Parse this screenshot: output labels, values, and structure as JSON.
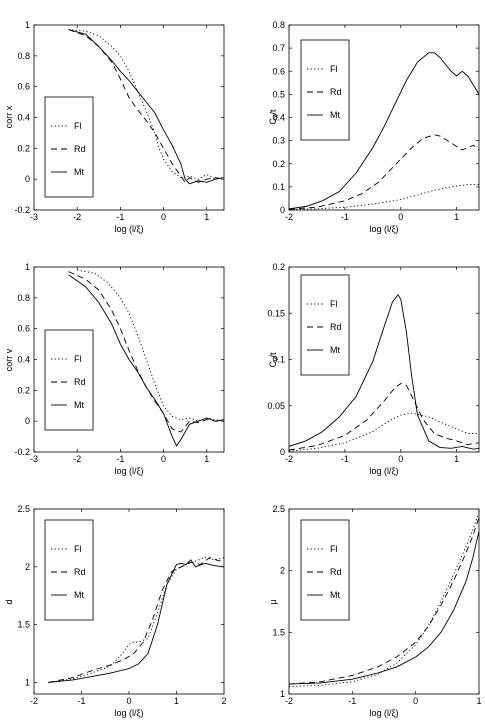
{
  "chart_data": [
    {
      "type": "line",
      "xlabel": "log (l/ξ)",
      "ylabel": "corr x",
      "xlim": [
        -3,
        1.4
      ],
      "ylim": [
        -0.2,
        1
      ],
      "xticks": [
        "-3",
        "-2",
        "-1",
        "0",
        "1"
      ],
      "yticks": [
        "-0.2",
        "0",
        "0.2",
        "0.4",
        "0.6",
        "0.8",
        "1"
      ],
      "legend_position": "bottom-left",
      "series": [
        {
          "name": "Fl",
          "style": "dotted",
          "x": [
            -2.2,
            -1.8,
            -1.5,
            -1.2,
            -1.0,
            -0.8,
            -0.6,
            -0.4,
            -0.2,
            -0.1,
            0.0,
            0.2,
            0.4,
            0.6,
            0.8,
            1.0,
            1.2,
            1.4
          ],
          "y": [
            0.97,
            0.96,
            0.93,
            0.86,
            0.8,
            0.7,
            0.57,
            0.44,
            0.3,
            0.2,
            0.13,
            0.05,
            0.01,
            0.02,
            0.0,
            0.03,
            0.0,
            0.01
          ]
        },
        {
          "name": "Rd",
          "style": "dashed",
          "x": [
            -2.2,
            -1.8,
            -1.5,
            -1.2,
            -1.0,
            -0.8,
            -0.6,
            -0.4,
            -0.2,
            0.0,
            0.2,
            0.4,
            0.5,
            0.6,
            0.8,
            1.0,
            1.2,
            1.4
          ],
          "y": [
            0.97,
            0.93,
            0.86,
            0.76,
            0.65,
            0.53,
            0.45,
            0.38,
            0.3,
            0.2,
            0.1,
            0.02,
            -0.02,
            0.01,
            -0.02,
            0.0,
            0.01,
            0.0
          ]
        },
        {
          "name": "Mt",
          "style": "solid",
          "x": [
            -2.2,
            -1.8,
            -1.5,
            -1.2,
            -1.0,
            -0.8,
            -0.6,
            -0.4,
            -0.2,
            0.0,
            0.2,
            0.4,
            0.5,
            0.6,
            0.8,
            1.0,
            1.2,
            1.4
          ],
          "y": [
            0.97,
            0.94,
            0.86,
            0.77,
            0.7,
            0.64,
            0.57,
            0.5,
            0.43,
            0.32,
            0.22,
            0.1,
            0.0,
            -0.03,
            -0.01,
            -0.02,
            0.0,
            0.01
          ]
        }
      ]
    },
    {
      "type": "line",
      "xlabel": "log (l/ξ)",
      "ylabel": "C_x/t",
      "xlim": [
        -2,
        1.4
      ],
      "ylim": [
        0,
        0.8
      ],
      "xticks": [
        "-2",
        "-1",
        "0",
        "1"
      ],
      "yticks": [
        "0",
        "0.1",
        "0.2",
        "0.3",
        "0.4",
        "0.5",
        "0.6",
        "0.7",
        "0.8"
      ],
      "legend_position": "top-left",
      "series": [
        {
          "name": "Fl",
          "style": "dotted",
          "x": [
            -2.0,
            -1.5,
            -1.0,
            -0.5,
            0.0,
            0.3,
            0.6,
            0.9,
            1.2,
            1.4
          ],
          "y": [
            0.002,
            0.005,
            0.012,
            0.025,
            0.045,
            0.065,
            0.085,
            0.1,
            0.11,
            0.11
          ]
        },
        {
          "name": "Rd",
          "style": "dashed",
          "x": [
            -2.0,
            -1.5,
            -1.0,
            -0.7,
            -0.4,
            -0.2,
            0.0,
            0.2,
            0.4,
            0.6,
            0.7,
            0.9,
            1.1,
            1.3,
            1.4
          ],
          "y": [
            0.003,
            0.012,
            0.04,
            0.07,
            0.12,
            0.17,
            0.22,
            0.27,
            0.31,
            0.325,
            0.32,
            0.29,
            0.26,
            0.28,
            0.26
          ]
        },
        {
          "name": "Mt",
          "style": "solid",
          "x": [
            -2.0,
            -1.7,
            -1.4,
            -1.1,
            -0.8,
            -0.5,
            -0.3,
            -0.1,
            0.1,
            0.3,
            0.5,
            0.6,
            0.7,
            0.9,
            1.0,
            1.1,
            1.2,
            1.3,
            1.4
          ],
          "y": [
            0.005,
            0.015,
            0.04,
            0.08,
            0.16,
            0.27,
            0.36,
            0.46,
            0.56,
            0.64,
            0.68,
            0.68,
            0.66,
            0.6,
            0.58,
            0.6,
            0.58,
            0.54,
            0.5
          ]
        }
      ]
    },
    {
      "type": "line",
      "xlabel": "log (l/ξ)",
      "ylabel": "corr v",
      "xlim": [
        -3,
        1.4
      ],
      "ylim": [
        -0.2,
        1
      ],
      "xticks": [
        "-3",
        "-2",
        "-1",
        "0",
        "1"
      ],
      "yticks": [
        "-0.2",
        "0",
        "0.2",
        "0.4",
        "0.6",
        "0.8",
        "1"
      ],
      "legend_position": "bottom-left",
      "series": [
        {
          "name": "Fl",
          "style": "dotted",
          "x": [
            -2.0,
            -1.6,
            -1.3,
            -1.0,
            -0.8,
            -0.6,
            -0.4,
            -0.2,
            0.0,
            0.2,
            0.4,
            0.6,
            0.8,
            1.0,
            1.2,
            1.4
          ],
          "y": [
            0.98,
            0.96,
            0.9,
            0.8,
            0.7,
            0.56,
            0.4,
            0.24,
            0.1,
            0.03,
            0.01,
            0.02,
            0.0,
            0.02,
            0.01,
            0.0
          ]
        },
        {
          "name": "Rd",
          "style": "dashed",
          "x": [
            -2.2,
            -1.8,
            -1.5,
            -1.2,
            -1.0,
            -0.8,
            -0.6,
            -0.4,
            -0.2,
            0.0,
            0.2,
            0.4,
            0.6,
            0.8,
            1.0,
            1.2,
            1.4
          ],
          "y": [
            0.97,
            0.92,
            0.85,
            0.72,
            0.6,
            0.46,
            0.33,
            0.22,
            0.13,
            0.05,
            -0.05,
            -0.07,
            0.0,
            -0.01,
            0.01,
            0.0,
            0.0
          ]
        },
        {
          "name": "Mt",
          "style": "solid",
          "x": [
            -2.2,
            -1.8,
            -1.5,
            -1.2,
            -1.0,
            -0.8,
            -0.6,
            -0.4,
            -0.2,
            0.0,
            0.2,
            0.3,
            0.4,
            0.6,
            0.8,
            1.0,
            1.2,
            1.4
          ],
          "y": [
            0.95,
            0.87,
            0.77,
            0.63,
            0.5,
            0.4,
            0.32,
            0.22,
            0.14,
            0.05,
            -0.1,
            -0.16,
            -0.12,
            -0.02,
            0.0,
            0.02,
            0.0,
            0.01
          ]
        }
      ]
    },
    {
      "type": "line",
      "xlabel": "log (l/ξ)",
      "ylabel": "C_v/t",
      "xlim": [
        -2,
        1.4
      ],
      "ylim": [
        0,
        0.2
      ],
      "xticks": [
        "-2",
        "-1",
        "0",
        "1"
      ],
      "yticks": [
        "0",
        "0.05",
        "0.1",
        "0.15",
        "0.2"
      ],
      "legend_position": "top-left",
      "series": [
        {
          "name": "Fl",
          "style": "dotted",
          "x": [
            -2.0,
            -1.5,
            -1.0,
            -0.5,
            -0.2,
            0.0,
            0.2,
            0.5,
            0.8,
            1.0,
            1.2,
            1.4
          ],
          "y": [
            0.001,
            0.004,
            0.01,
            0.022,
            0.034,
            0.04,
            0.042,
            0.038,
            0.03,
            0.025,
            0.02,
            0.02
          ]
        },
        {
          "name": "Rd",
          "style": "dashed",
          "x": [
            -2.0,
            -1.5,
            -1.0,
            -0.6,
            -0.3,
            -0.1,
            0.0,
            0.1,
            0.2,
            0.4,
            0.6,
            0.8,
            1.0,
            1.2,
            1.4
          ],
          "y": [
            0.002,
            0.007,
            0.018,
            0.035,
            0.055,
            0.07,
            0.074,
            0.072,
            0.06,
            0.035,
            0.02,
            0.015,
            0.012,
            0.008,
            0.01
          ]
        },
        {
          "name": "Mt",
          "style": "solid",
          "x": [
            -2.0,
            -1.7,
            -1.4,
            -1.1,
            -0.8,
            -0.5,
            -0.3,
            -0.15,
            -0.05,
            0.0,
            0.1,
            0.2,
            0.3,
            0.5,
            0.7,
            0.9,
            1.1,
            1.3,
            1.4
          ],
          "y": [
            0.006,
            0.012,
            0.022,
            0.038,
            0.06,
            0.098,
            0.135,
            0.162,
            0.17,
            0.165,
            0.13,
            0.08,
            0.04,
            0.012,
            0.005,
            0.004,
            0.006,
            0.003,
            0.004
          ]
        }
      ]
    },
    {
      "type": "line",
      "xlabel": "log (l/ξ)",
      "ylabel": "d",
      "xlim": [
        -2,
        2
      ],
      "ylim": [
        0.9,
        2.5
      ],
      "xticks": [
        "-2",
        "-1",
        "0",
        "1",
        "2"
      ],
      "yticks": [
        "1",
        "1.5",
        "2",
        "2.5"
      ],
      "legend_position": "top-left",
      "series": [
        {
          "name": "Fl",
          "style": "dotted",
          "x": [
            -1.7,
            -1.2,
            -0.8,
            -0.4,
            -0.2,
            0.0,
            0.1,
            0.2,
            0.4,
            0.6,
            0.8,
            1.0,
            1.2,
            1.4,
            1.6,
            1.8,
            2.0
          ],
          "y": [
            1.0,
            1.03,
            1.08,
            1.14,
            1.22,
            1.33,
            1.35,
            1.35,
            1.38,
            1.6,
            1.85,
            1.98,
            2.02,
            2.05,
            2.08,
            2.06,
            2.08
          ]
        },
        {
          "name": "Rd",
          "style": "dashed",
          "x": [
            -1.7,
            -1.2,
            -0.8,
            -0.4,
            -0.1,
            0.1,
            0.3,
            0.5,
            0.7,
            0.9,
            1.1,
            1.3,
            1.5,
            1.7,
            1.9,
            2.0
          ],
          "y": [
            1.0,
            1.04,
            1.1,
            1.15,
            1.2,
            1.25,
            1.35,
            1.55,
            1.8,
            1.96,
            2.0,
            2.04,
            2.02,
            2.08,
            2.05,
            2.07
          ]
        },
        {
          "name": "Mt",
          "style": "solid",
          "x": [
            -1.7,
            -1.2,
            -0.8,
            -0.4,
            0.0,
            0.2,
            0.4,
            0.6,
            0.8,
            1.0,
            1.1,
            1.2,
            1.3,
            1.4,
            1.6,
            1.8,
            2.0
          ],
          "y": [
            1.0,
            1.02,
            1.05,
            1.08,
            1.12,
            1.16,
            1.25,
            1.5,
            1.85,
            2.02,
            2.03,
            2.02,
            2.06,
            2.0,
            2.03,
            2.01,
            2.0
          ]
        }
      ]
    },
    {
      "type": "line",
      "xlabel": "log (l/ξ)",
      "ylabel": "μ",
      "xlim": [
        -2,
        1
      ],
      "ylim": [
        1,
        2.5
      ],
      "xticks": [
        "-2",
        "-1",
        "0",
        "1"
      ],
      "yticks": [
        "1",
        "1.5",
        "2",
        "2.5"
      ],
      "legend_position": "top-left",
      "series": [
        {
          "name": "Fl",
          "style": "dotted",
          "x": [
            -2.0,
            -1.5,
            -1.0,
            -0.6,
            -0.3,
            0.0,
            0.2,
            0.4,
            0.6,
            0.8,
            0.9,
            1.0
          ],
          "y": [
            1.06,
            1.07,
            1.1,
            1.16,
            1.25,
            1.4,
            1.55,
            1.75,
            1.97,
            2.2,
            2.33,
            2.47
          ]
        },
        {
          "name": "Rd",
          "style": "dashed",
          "x": [
            -2.0,
            -1.5,
            -1.0,
            -0.6,
            -0.3,
            0.0,
            0.2,
            0.4,
            0.6,
            0.8,
            0.9,
            1.0
          ],
          "y": [
            1.08,
            1.1,
            1.15,
            1.22,
            1.3,
            1.42,
            1.55,
            1.72,
            1.92,
            2.15,
            2.28,
            2.43
          ]
        },
        {
          "name": "Mt",
          "style": "solid",
          "x": [
            -2.0,
            -1.5,
            -1.0,
            -0.6,
            -0.3,
            0.0,
            0.2,
            0.4,
            0.6,
            0.8,
            0.9,
            1.0
          ],
          "y": [
            1.08,
            1.09,
            1.12,
            1.17,
            1.22,
            1.3,
            1.38,
            1.5,
            1.68,
            1.92,
            2.1,
            2.32
          ]
        }
      ]
    }
  ]
}
